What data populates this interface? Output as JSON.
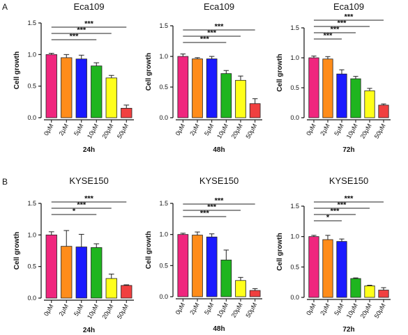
{
  "panel_labels": [
    "A",
    "B"
  ],
  "colors": [
    "#f0267e",
    "#ff8c1a",
    "#1a1aff",
    "#1fb51f",
    "#ffff1a",
    "#f04040"
  ],
  "chart_data": [
    {
      "type": "bar",
      "panel": "A",
      "title": "Eca109",
      "xlabel": "24h",
      "ylabel": "Cell growth",
      "categories": [
        "0μM",
        "2μM",
        "5μM",
        "10μM",
        "20μM",
        "50μM"
      ],
      "values": [
        1.0,
        0.95,
        0.93,
        0.82,
        0.63,
        0.15
      ],
      "errors": [
        0.02,
        0.05,
        0.06,
        0.05,
        0.04,
        0.05
      ],
      "ylim": [
        0,
        1.5
      ],
      "yticks": [
        "0.0",
        "0.5",
        "1.0",
        "1.5"
      ],
      "significance": [
        {
          "from": "0μM",
          "to": "10μM",
          "label": "***"
        },
        {
          "from": "0μM",
          "to": "20μM",
          "label": "***"
        },
        {
          "from": "0μM",
          "to": "50μM",
          "label": "***"
        }
      ]
    },
    {
      "type": "bar",
      "panel": "A",
      "title": "Eca109",
      "xlabel": "48h",
      "ylabel": "Cell growth",
      "categories": [
        "0μM",
        "2μM",
        "5μM",
        "10μM",
        "20μM",
        "50μM"
      ],
      "values": [
        1.0,
        0.96,
        0.96,
        0.72,
        0.61,
        0.23
      ],
      "errors": [
        0.04,
        0.02,
        0.04,
        0.05,
        0.07,
        0.08
      ],
      "ylim": [
        0,
        1.5
      ],
      "yticks": [
        "0.0",
        "0.5",
        "1.0",
        "1.5"
      ],
      "significance": [
        {
          "from": "0μM",
          "to": "10μM",
          "label": "***"
        },
        {
          "from": "0μM",
          "to": "20μM",
          "label": "***"
        },
        {
          "from": "0μM",
          "to": "50μM",
          "label": "***"
        }
      ]
    },
    {
      "type": "bar",
      "panel": "A",
      "title": "Eca109",
      "xlabel": "72h",
      "ylabel": "Cell growth",
      "categories": [
        "0μM",
        "2μM",
        "5μM",
        "10μM",
        "20μM",
        "50μM"
      ],
      "values": [
        1.0,
        0.98,
        0.73,
        0.65,
        0.45,
        0.21
      ],
      "errors": [
        0.03,
        0.04,
        0.07,
        0.04,
        0.04,
        0.02
      ],
      "ylim": [
        0,
        1.5
      ],
      "yticks": [
        "0.0",
        "0.5",
        "1.0",
        "1.5"
      ],
      "significance": [
        {
          "from": "0μM",
          "to": "5μM",
          "label": "***"
        },
        {
          "from": "0μM",
          "to": "10μM",
          "label": "***"
        },
        {
          "from": "0μM",
          "to": "20μM",
          "label": "***"
        },
        {
          "from": "0μM",
          "to": "50μM",
          "label": "***"
        }
      ]
    },
    {
      "type": "bar",
      "panel": "B",
      "title": "KYSE150",
      "xlabel": "24h",
      "ylabel": "Cell growth",
      "categories": [
        "0μM",
        "2μM",
        "5μM",
        "10μM",
        "20μM",
        "50μM"
      ],
      "values": [
        1.0,
        0.82,
        0.81,
        0.8,
        0.31,
        0.2
      ],
      "errors": [
        0.05,
        0.25,
        0.2,
        0.06,
        0.07,
        0.01
      ],
      "ylim": [
        0,
        1.5
      ],
      "yticks": [
        "0.0",
        "0.5",
        "1.0",
        "1.5"
      ],
      "significance": [
        {
          "from": "0μM",
          "to": "10μM",
          "label": "*"
        },
        {
          "from": "0μM",
          "to": "20μM",
          "label": "***"
        },
        {
          "from": "0μM",
          "to": "50μM",
          "label": "***"
        }
      ]
    },
    {
      "type": "bar",
      "panel": "B",
      "title": "KYSE150",
      "xlabel": "48h",
      "ylabel": "Cell growth",
      "categories": [
        "0μM",
        "2μM",
        "5μM",
        "10μM",
        "20μM",
        "50μM"
      ],
      "values": [
        1.0,
        0.99,
        0.96,
        0.59,
        0.26,
        0.1
      ],
      "errors": [
        0.02,
        0.05,
        0.05,
        0.16,
        0.05,
        0.03
      ],
      "ylim": [
        0,
        1.5
      ],
      "yticks": [
        "0.0",
        "0.5",
        "1.0",
        "1.5"
      ],
      "significance": [
        {
          "from": "0μM",
          "to": "10μM",
          "label": "***"
        },
        {
          "from": "0μM",
          "to": "20μM",
          "label": "***"
        },
        {
          "from": "0μM",
          "to": "50μM",
          "label": "***"
        }
      ]
    },
    {
      "type": "bar",
      "panel": "B",
      "title": "KYSE150",
      "xlabel": "72h",
      "ylabel": "Cell growth",
      "categories": [
        "0μM",
        "2μM",
        "5μM",
        "10μM",
        "20μM",
        "50μM"
      ],
      "values": [
        1.0,
        0.95,
        0.92,
        0.31,
        0.19,
        0.12
      ],
      "errors": [
        0.02,
        0.07,
        0.04,
        0.01,
        0.01,
        0.04
      ],
      "ylim": [
        0,
        1.5
      ],
      "yticks": [
        "0.0",
        "0.5",
        "1.0",
        "1.5"
      ],
      "significance": [
        {
          "from": "0μM",
          "to": "5μM",
          "label": "*"
        },
        {
          "from": "0μM",
          "to": "10μM",
          "label": "***"
        },
        {
          "from": "0μM",
          "to": "20μM",
          "label": "***"
        },
        {
          "from": "0μM",
          "to": "50μM",
          "label": "***"
        }
      ]
    }
  ]
}
